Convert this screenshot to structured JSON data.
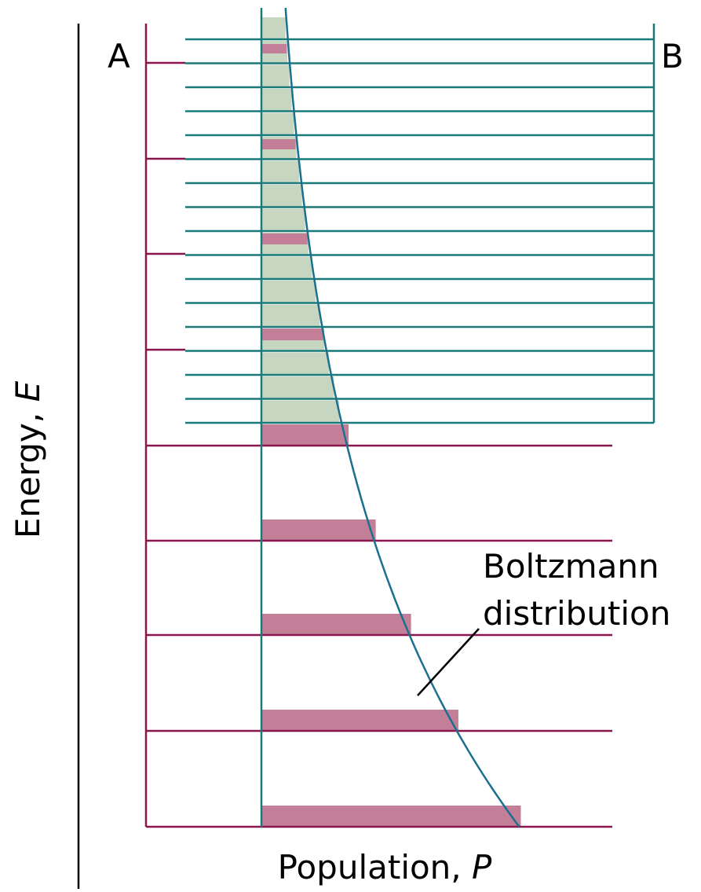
{
  "labels": {
    "left": "A",
    "right": "B"
  },
  "axis_y": {
    "label": "Energy,",
    "symbol": "E"
  },
  "axis_x": {
    "label": "Population,",
    "symbol": "P"
  },
  "annotation": {
    "lines": [
      "Boltzmann",
      "distribution"
    ]
  }
}
